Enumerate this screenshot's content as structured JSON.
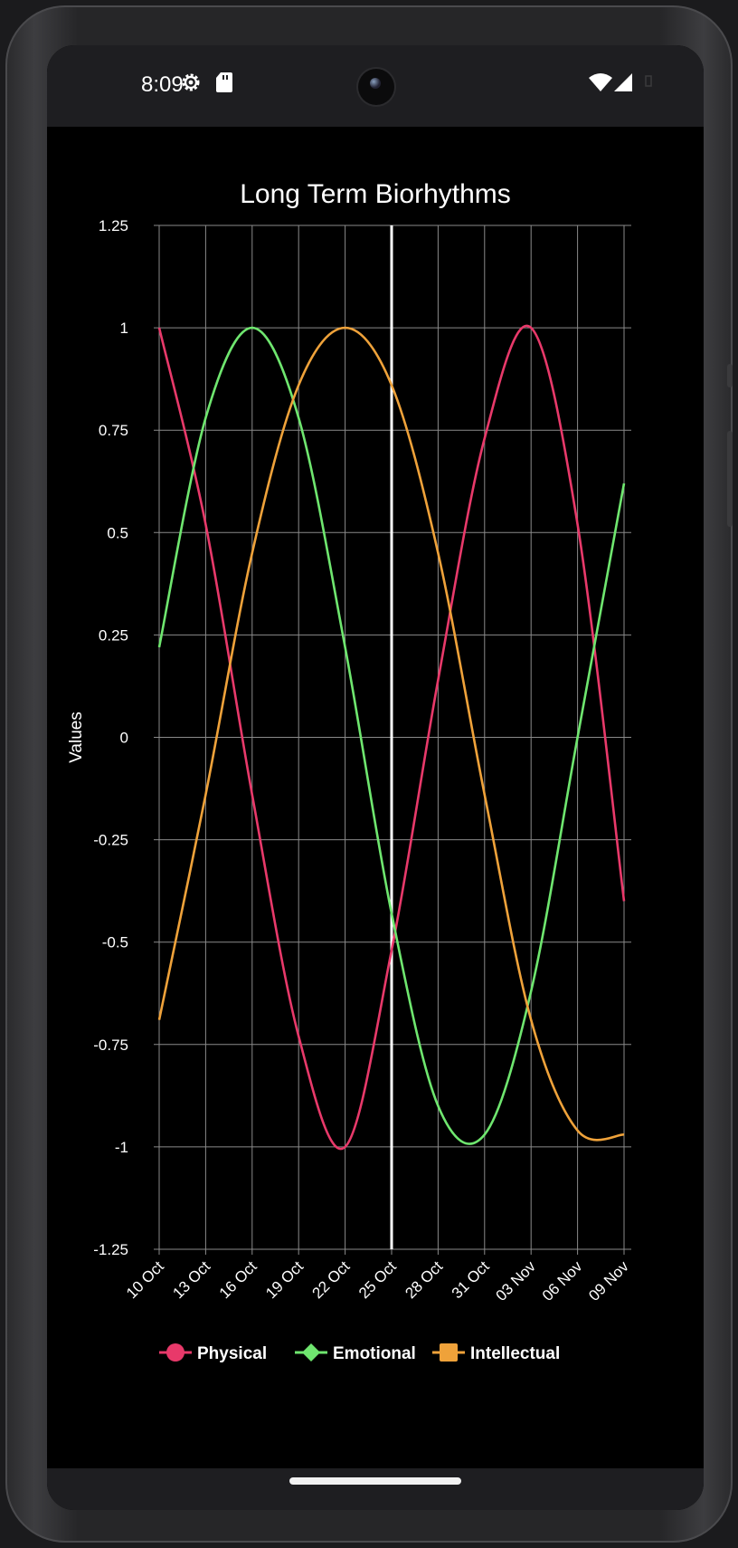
{
  "status_bar": {
    "time": "8:09"
  },
  "colors": {
    "physical": "#e8396a",
    "emotional": "#6fe66f",
    "intellectual": "#efa23a",
    "grid": "#8a8a8a",
    "today_line": "#ffffff"
  },
  "chart_data": {
    "type": "line",
    "title": "Long Term Biorhythms",
    "xlabel": "",
    "ylabel": "Values",
    "x_range": [
      "2023-10-10",
      "2023-11-09"
    ],
    "x_ticks": [
      "10 Oct",
      "13 Oct",
      "16 Oct",
      "19 Oct",
      "22 Oct",
      "25 Oct",
      "28 Oct",
      "31 Oct",
      "03 Nov",
      "06 Nov",
      "09 Nov"
    ],
    "y_ticks": [
      "1.25",
      "1",
      "0.75",
      "0.5",
      "0.25",
      "0",
      "-0.25",
      "-0.5",
      "-0.75",
      "-1",
      "-1.25"
    ],
    "ylim": [
      -1.25,
      1.25
    ],
    "grid": true,
    "today_marker": "25 Oct",
    "legend_position": "bottom",
    "series": [
      {
        "name": "Physical",
        "marker": "circle",
        "color": "#e8396a",
        "x": [
          "10 Oct",
          "13 Oct",
          "16 Oct",
          "19 Oct",
          "22 Oct",
          "25 Oct",
          "28 Oct",
          "31 Oct",
          "03 Nov",
          "06 Nov",
          "09 Nov"
        ],
        "values": [
          1.0,
          0.52,
          -0.14,
          -0.73,
          -1.0,
          -0.52,
          0.14,
          0.73,
          1.0,
          0.52,
          -0.4
        ]
      },
      {
        "name": "Emotional",
        "marker": "diamond",
        "color": "#6fe66f",
        "x": [
          "10 Oct",
          "13 Oct",
          "16 Oct",
          "19 Oct",
          "22 Oct",
          "25 Oct",
          "28 Oct",
          "31 Oct",
          "03 Nov",
          "06 Nov",
          "09 Nov"
        ],
        "values": [
          0.22,
          0.78,
          1.0,
          0.78,
          0.22,
          -0.43,
          -0.9,
          -0.97,
          -0.62,
          0.0,
          0.62
        ]
      },
      {
        "name": "Intellectual",
        "marker": "square",
        "color": "#efa23a",
        "x": [
          "10 Oct",
          "13 Oct",
          "16 Oct",
          "19 Oct",
          "22 Oct",
          "25 Oct",
          "28 Oct",
          "31 Oct",
          "03 Nov",
          "06 Nov",
          "09 Nov"
        ],
        "values": [
          -0.69,
          -0.14,
          0.45,
          0.86,
          1.0,
          0.86,
          0.45,
          -0.14,
          -0.69,
          -0.96,
          -0.97
        ]
      }
    ]
  }
}
